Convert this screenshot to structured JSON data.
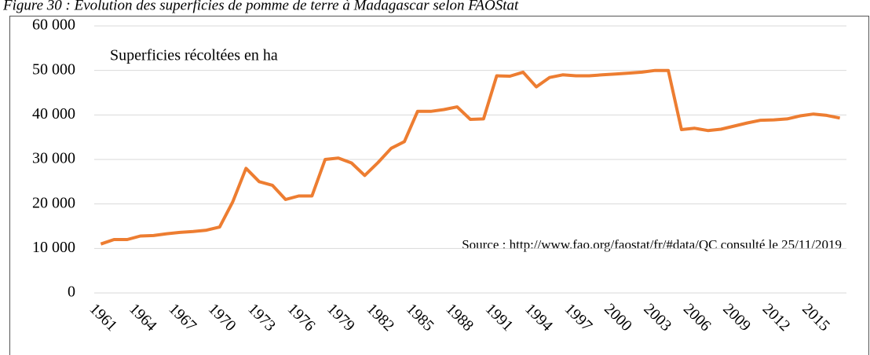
{
  "chart_data": {
    "type": "line",
    "title": "Figure 30 : Evolution des superficies de pomme de terre à Madagascar selon FAOStat",
    "annotations": [
      "Superficies récoltées en ha",
      "Source :  http://www.fao.org/faostat/fr/#data/QC consulté le 25/11/2019"
    ],
    "x": [
      1961,
      1962,
      1963,
      1964,
      1965,
      1966,
      1967,
      1968,
      1969,
      1970,
      1971,
      1972,
      1973,
      1974,
      1975,
      1976,
      1977,
      1978,
      1979,
      1980,
      1981,
      1982,
      1983,
      1984,
      1985,
      1986,
      1987,
      1988,
      1989,
      1990,
      1991,
      1992,
      1993,
      1994,
      1995,
      1996,
      1997,
      1998,
      1999,
      2000,
      2001,
      2002,
      2003,
      2004,
      2005,
      2006,
      2007,
      2008,
      2009,
      2010,
      2011,
      2012,
      2013,
      2014,
      2015,
      2016,
      2017
    ],
    "values": [
      11000,
      12000,
      12000,
      12800,
      12900,
      13300,
      13600,
      13800,
      14100,
      14800,
      20500,
      28000,
      25000,
      24200,
      21000,
      21800,
      21800,
      30000,
      30300,
      29200,
      26400,
      29300,
      32500,
      34000,
      40800,
      40800,
      41200,
      41800,
      39000,
      39100,
      48800,
      48700,
      49600,
      46300,
      48400,
      49000,
      48800,
      48800,
      49000,
      49200,
      49400,
      49600,
      50000,
      50000,
      36700,
      37000,
      36500,
      36800,
      37500,
      38200,
      38800,
      38900,
      39100,
      39800,
      40200,
      39900,
      39300
    ],
    "color": "#ed7d31",
    "xlim": [
      1960.5,
      2017.5
    ],
    "xticks": [
      1961,
      1964,
      1967,
      1970,
      1973,
      1976,
      1979,
      1982,
      1985,
      1988,
      1991,
      1994,
      1997,
      2000,
      2003,
      2006,
      2009,
      2012,
      2015
    ],
    "ylim": [
      0,
      60000
    ],
    "yticks": [
      0,
      {
        "value": 10000,
        "label": "10 000"
      },
      {
        "value": 20000,
        "label": "20 000"
      },
      {
        "value": 30000,
        "label": "30 000"
      },
      {
        "value": 40000,
        "label": "40 000"
      },
      {
        "value": 50000,
        "label": "50 000"
      },
      {
        "value": 60000,
        "label": "60 000"
      }
    ],
    "grid": true
  }
}
